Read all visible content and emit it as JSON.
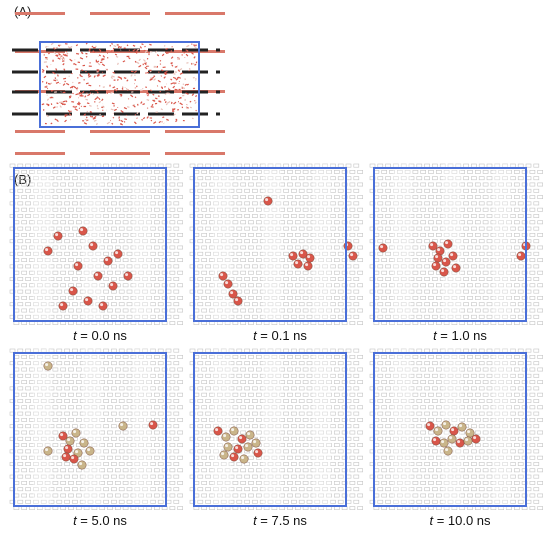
{
  "panel_a": {
    "label": "(A)"
  },
  "panel_b": {
    "label": "(B)"
  },
  "frames": [
    {
      "t_label": "t",
      "t_value": " = 0.0 ns"
    },
    {
      "t_label": "t",
      "t_value": " = 0.1 ns"
    },
    {
      "t_label": "t",
      "t_value": " = 1.0 ns"
    },
    {
      "t_label": "t",
      "t_value": " = 5.0 ns"
    },
    {
      "t_label": "t",
      "t_value": " = 7.5 ns"
    },
    {
      "t_label": "t",
      "t_value": " = 10.0 ns"
    }
  ],
  "colors": {
    "box": "#4a6fd8",
    "layer": "#d9786a",
    "dark_layer": "#222222",
    "graphene": "#c4c4c4",
    "molecule_red": "#d9564a",
    "molecule_tan": "#c9b58a"
  }
}
